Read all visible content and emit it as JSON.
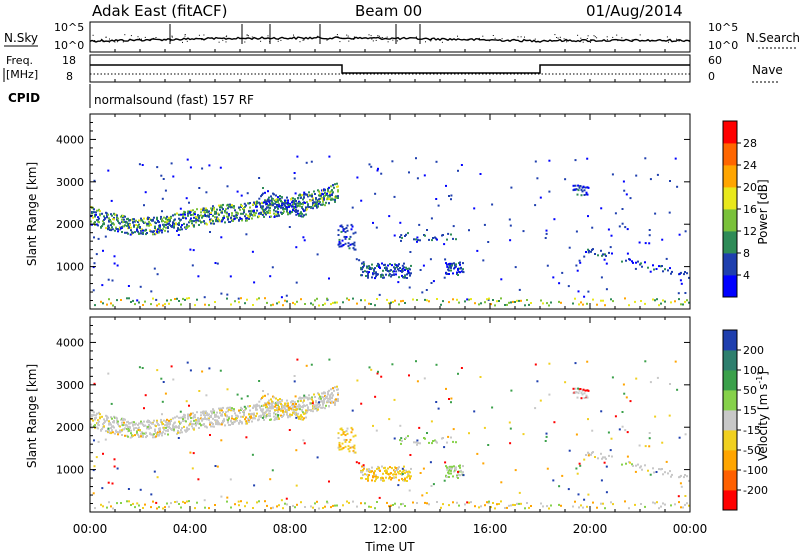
{
  "header": {
    "station": "Adak East (fitACF)",
    "beam": "Beam 00",
    "date": "01/Aug/2014"
  },
  "chart_data": {
    "type": "heatmap",
    "time_ticks": [
      "00:00",
      "04:00",
      "08:00",
      "12:00",
      "16:00",
      "20:00",
      "00:00"
    ],
    "time_range_hours": [
      0,
      24
    ],
    "xlabel": "Time UT",
    "noise_panel": {
      "left_label": "N.Sky",
      "right_label": "N.Search",
      "left_ticks": [
        "10^5",
        "10^0"
      ],
      "right_ticks": [
        "10^5",
        "10^0"
      ]
    },
    "freq_panel": {
      "left_label_1": "Freq.",
      "left_label_2": "[MHz]",
      "left_ticks": [
        18,
        8
      ],
      "right_label": "Nave",
      "right_ticks": [
        60,
        0
      ]
    },
    "cpid": {
      "label": "CPID",
      "text": "normalsound (fast) 157 RF"
    },
    "power_panel": {
      "ylabel": "Slant Range [km]",
      "y_ticks": [
        1000,
        2000,
        3000,
        4000
      ],
      "y_range": [
        0,
        4600
      ],
      "colorbar_label": "Power [dB]",
      "colorbar_ticks": [
        4,
        8,
        12,
        16,
        20,
        24,
        28
      ],
      "colorbar_colors": [
        "#0000ff",
        "#1f3fae",
        "#2e8b57",
        "#7ac13a",
        "#e8e81c",
        "#ffa500",
        "#ff6600",
        "#ff0000"
      ]
    },
    "velocity_panel": {
      "ylabel": "Slant Range [km]",
      "y_ticks": [
        1000,
        2000,
        3000,
        4000
      ],
      "y_range": [
        0,
        4600
      ],
      "colorbar_label": "Velocity [m s",
      "colorbar_label_sup": "-1",
      "colorbar_label_end": "]",
      "colorbar_ticks": [
        200,
        100,
        50,
        15,
        -15,
        -50,
        -100,
        -200
      ],
      "colorbar_colors": [
        "#1f3fae",
        "#2e7f6e",
        "#3aa04a",
        "#86d14a",
        "#c8c8c8",
        "#f0d020",
        "#ffa500",
        "#ff6000",
        "#ff0000"
      ]
    }
  }
}
